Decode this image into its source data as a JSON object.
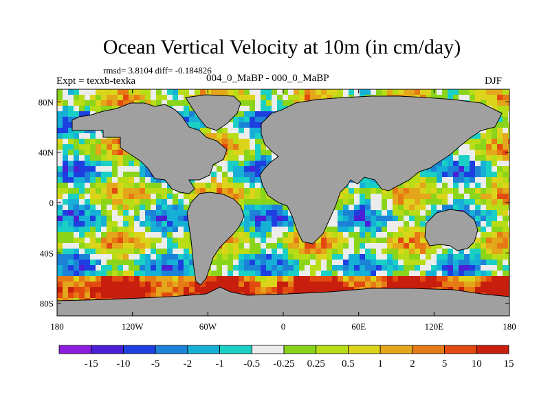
{
  "title": "Ocean Vertical Velocity at 10m (in cm/day)",
  "stats": "rmsd= 3.8104 diff= -0.184826",
  "experiment": "Expt = texxb-texka",
  "subtitle": "004_0_MaBP - 000_0_MaBP",
  "season": "DJF",
  "axes": {
    "lon_ticks": [
      {
        "value": -180,
        "label": "180"
      },
      {
        "value": -120,
        "label": "120W"
      },
      {
        "value": -60,
        "label": "60W"
      },
      {
        "value": 0,
        "label": "0"
      },
      {
        "value": 60,
        "label": "60E"
      },
      {
        "value": 120,
        "label": "120E"
      },
      {
        "value": 180,
        "label": "180"
      }
    ],
    "lat_ticks": [
      {
        "value": 80,
        "label": "80N"
      },
      {
        "value": 40,
        "label": "40N"
      },
      {
        "value": 0,
        "label": "0"
      },
      {
        "value": -40,
        "label": "40S"
      },
      {
        "value": -80,
        "label": "80S"
      }
    ],
    "lon_range": [
      -180,
      180
    ],
    "lat_range": [
      -90,
      90
    ]
  },
  "colorbar": {
    "colors": [
      "#8d1ee0",
      "#4b1fd6",
      "#1e3fe0",
      "#1c82d8",
      "#16b0d6",
      "#1ad0c4",
      "#ececec",
      "#8ad41a",
      "#b8dc16",
      "#dcd41a",
      "#e4a61a",
      "#e67a14",
      "#e24a10",
      "#c81e0e"
    ],
    "labels": [
      "-15",
      "-10",
      "-5",
      "-2",
      "-1",
      "-0.5",
      "-0.25",
      "0.25",
      "0.5",
      "1",
      "2",
      "5",
      "10",
      "15"
    ]
  },
  "colors": {
    "land": "#a0a0a0",
    "background": "#ffffff"
  }
}
